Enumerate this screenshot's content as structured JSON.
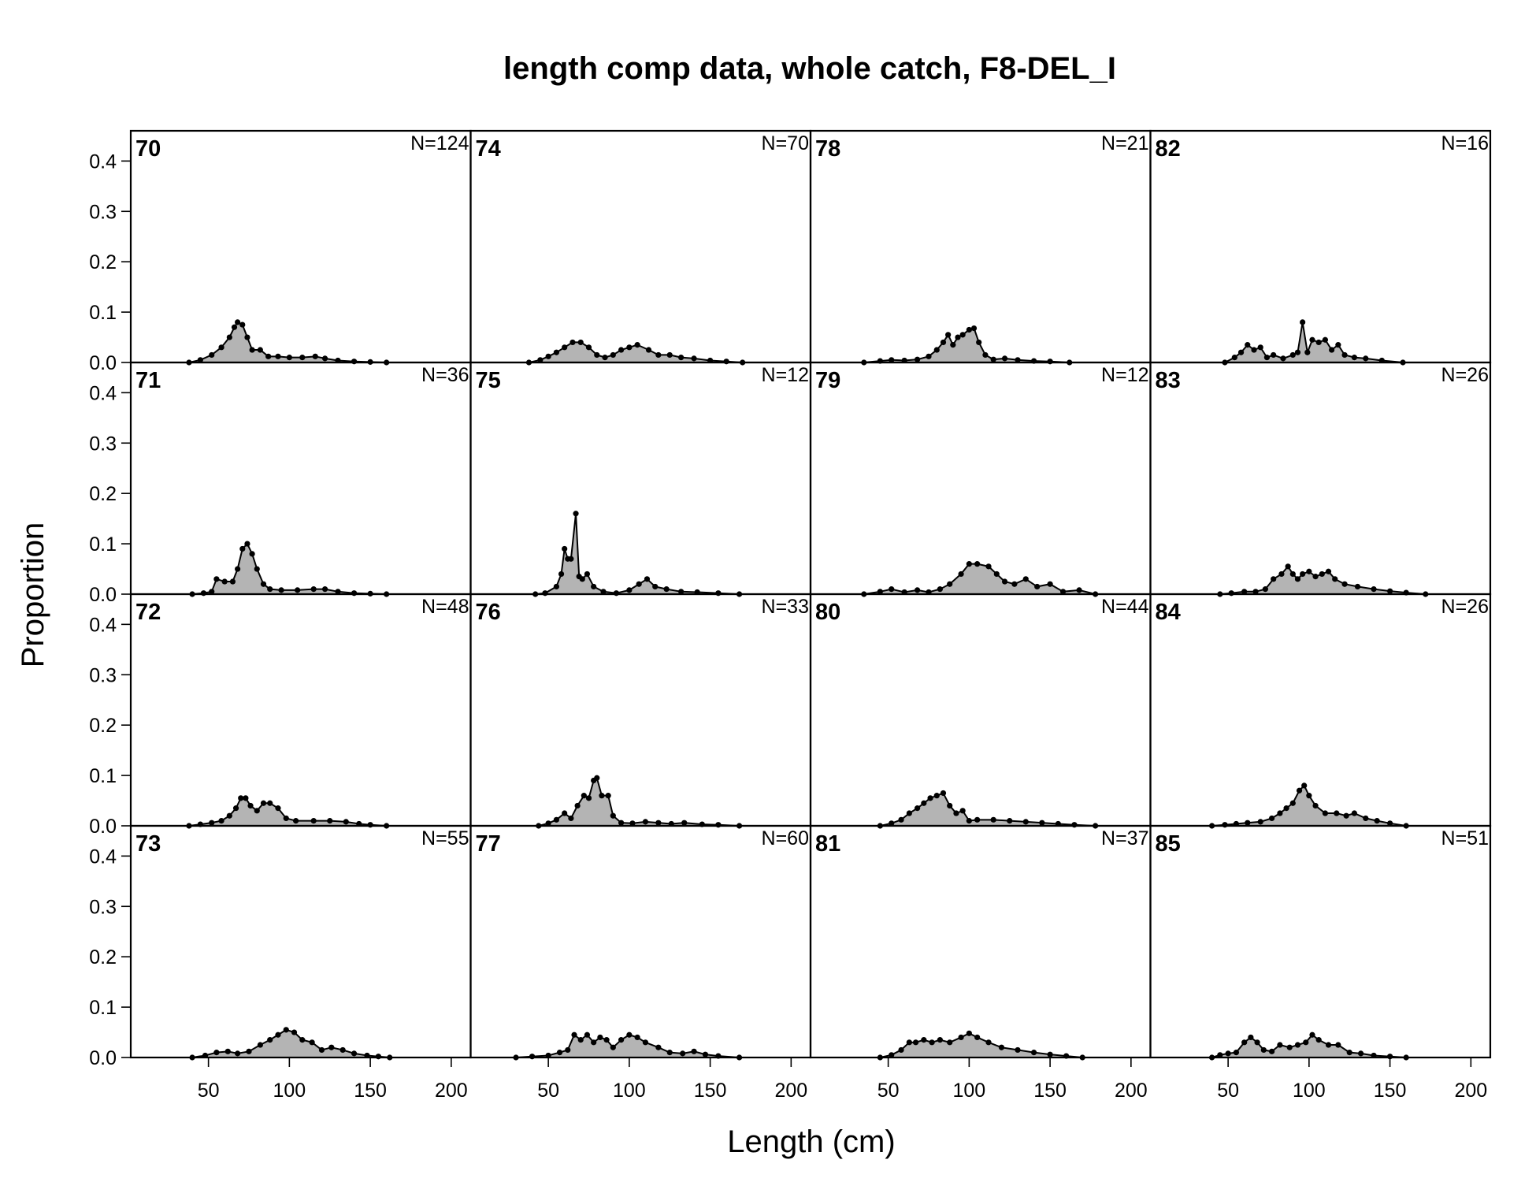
{
  "chart_data": {
    "type": "area",
    "title": "length comp data, whole catch, F8-DEL_I",
    "xlabel": "Length (cm)",
    "ylabel": "Proportion",
    "xlim": [
      2,
      212
    ],
    "ylim": [
      0,
      0.46
    ],
    "xticks": [
      50,
      100,
      150,
      200
    ],
    "yticks": [
      0.0,
      0.1,
      0.2,
      0.3,
      0.4
    ],
    "ytick_labels": [
      "0.0",
      "0.1",
      "0.2",
      "0.3",
      "0.4"
    ],
    "grid": false,
    "layout": "4 rows x 4 columns, years down columns",
    "panels": [
      {
        "year": "70",
        "n_label": "N=124",
        "x": [
          38,
          45,
          52,
          58,
          63,
          66,
          68,
          71,
          74,
          77,
          82,
          87,
          93,
          100,
          108,
          116,
          122,
          130,
          140,
          150,
          160
        ],
        "y": [
          0,
          0.005,
          0.015,
          0.03,
          0.05,
          0.07,
          0.08,
          0.075,
          0.05,
          0.025,
          0.025,
          0.012,
          0.012,
          0.01,
          0.01,
          0.012,
          0.008,
          0.004,
          0.002,
          0.001,
          0
        ]
      },
      {
        "year": "71",
        "n_label": "N=36",
        "x": [
          40,
          47,
          52,
          55,
          60,
          65,
          68,
          71,
          74,
          77,
          80,
          84,
          88,
          95,
          105,
          115,
          122,
          130,
          140,
          150,
          160
        ],
        "y": [
          0,
          0.002,
          0.005,
          0.03,
          0.025,
          0.025,
          0.05,
          0.09,
          0.1,
          0.08,
          0.05,
          0.02,
          0.01,
          0.008,
          0.008,
          0.01,
          0.01,
          0.005,
          0.002,
          0.001,
          0
        ]
      },
      {
        "year": "72",
        "n_label": "N=48",
        "x": [
          38,
          45,
          52,
          58,
          63,
          67,
          70,
          73,
          76,
          80,
          84,
          88,
          93,
          98,
          104,
          115,
          125,
          135,
          143,
          150,
          160
        ],
        "y": [
          0,
          0.003,
          0.006,
          0.01,
          0.02,
          0.035,
          0.055,
          0.055,
          0.04,
          0.03,
          0.045,
          0.045,
          0.035,
          0.015,
          0.01,
          0.01,
          0.01,
          0.008,
          0.004,
          0.002,
          0
        ]
      },
      {
        "year": "73",
        "n_label": "N=55",
        "x": [
          40,
          48,
          55,
          62,
          68,
          75,
          82,
          88,
          93,
          98,
          103,
          108,
          114,
          120,
          126,
          133,
          140,
          148,
          155,
          162
        ],
        "y": [
          0,
          0.004,
          0.01,
          0.012,
          0.008,
          0.012,
          0.025,
          0.035,
          0.045,
          0.055,
          0.05,
          0.035,
          0.03,
          0.015,
          0.02,
          0.015,
          0.008,
          0.004,
          0.002,
          0
        ]
      },
      {
        "year": "74",
        "n_label": "N=70",
        "x": [
          38,
          45,
          50,
          55,
          60,
          65,
          70,
          75,
          80,
          85,
          90,
          95,
          100,
          105,
          112,
          118,
          125,
          132,
          140,
          150,
          160,
          170
        ],
        "y": [
          0,
          0.005,
          0.012,
          0.02,
          0.03,
          0.04,
          0.04,
          0.03,
          0.015,
          0.01,
          0.015,
          0.025,
          0.03,
          0.035,
          0.025,
          0.015,
          0.015,
          0.01,
          0.008,
          0.004,
          0.002,
          0
        ]
      },
      {
        "year": "75",
        "n_label": "N=12",
        "x": [
          42,
          48,
          55,
          58,
          60,
          62,
          64,
          67,
          69,
          71,
          74,
          78,
          84,
          92,
          100,
          106,
          111,
          116,
          123,
          132,
          142,
          155,
          168
        ],
        "y": [
          0,
          0.002,
          0.015,
          0.04,
          0.09,
          0.07,
          0.07,
          0.16,
          0.035,
          0.03,
          0.04,
          0.015,
          0.005,
          0.002,
          0.008,
          0.02,
          0.03,
          0.015,
          0.01,
          0.005,
          0.004,
          0.002,
          0
        ]
      },
      {
        "year": "76",
        "n_label": "N=33",
        "x": [
          44,
          50,
          55,
          60,
          64,
          68,
          72,
          75,
          78,
          80,
          83,
          87,
          90,
          95,
          102,
          110,
          118,
          126,
          134,
          145,
          155,
          168
        ],
        "y": [
          0,
          0.005,
          0.012,
          0.025,
          0.015,
          0.04,
          0.06,
          0.055,
          0.09,
          0.095,
          0.06,
          0.06,
          0.02,
          0.006,
          0.005,
          0.008,
          0.006,
          0.004,
          0.006,
          0.003,
          0.002,
          0
        ]
      },
      {
        "year": "77",
        "n_label": "N=60",
        "x": [
          30,
          40,
          50,
          57,
          62,
          66,
          70,
          74,
          78,
          82,
          86,
          90,
          95,
          100,
          105,
          110,
          118,
          125,
          133,
          140,
          147,
          155,
          168
        ],
        "y": [
          0,
          0.002,
          0.004,
          0.01,
          0.015,
          0.045,
          0.035,
          0.045,
          0.03,
          0.04,
          0.035,
          0.02,
          0.035,
          0.045,
          0.04,
          0.03,
          0.02,
          0.01,
          0.008,
          0.012,
          0.006,
          0.003,
          0
        ]
      },
      {
        "year": "78",
        "n_label": "N=21",
        "x": [
          35,
          45,
          52,
          60,
          68,
          75,
          80,
          84,
          87,
          90,
          93,
          96,
          100,
          103,
          106,
          110,
          115,
          122,
          130,
          140,
          150,
          162
        ],
        "y": [
          0,
          0.003,
          0.005,
          0.004,
          0.006,
          0.012,
          0.025,
          0.04,
          0.055,
          0.035,
          0.05,
          0.055,
          0.065,
          0.068,
          0.04,
          0.015,
          0.006,
          0.008,
          0.005,
          0.003,
          0.002,
          0
        ]
      },
      {
        "year": "79",
        "n_label": "N=12",
        "x": [
          35,
          45,
          52,
          60,
          68,
          75,
          82,
          88,
          95,
          100,
          105,
          112,
          117,
          122,
          128,
          135,
          142,
          150,
          158,
          168,
          178
        ],
        "y": [
          0,
          0.005,
          0.01,
          0.004,
          0.008,
          0.004,
          0.01,
          0.02,
          0.04,
          0.06,
          0.06,
          0.055,
          0.04,
          0.025,
          0.02,
          0.03,
          0.015,
          0.02,
          0.005,
          0.008,
          0
        ]
      },
      {
        "year": "80",
        "n_label": "N=44",
        "x": [
          45,
          52,
          58,
          63,
          68,
          72,
          76,
          80,
          84,
          88,
          92,
          96,
          100,
          105,
          115,
          125,
          135,
          145,
          155,
          165,
          178
        ],
        "y": [
          0,
          0.005,
          0.012,
          0.025,
          0.035,
          0.045,
          0.055,
          0.06,
          0.065,
          0.04,
          0.025,
          0.03,
          0.01,
          0.012,
          0.012,
          0.01,
          0.008,
          0.006,
          0.004,
          0.002,
          0
        ]
      },
      {
        "year": "81",
        "n_label": "N=37",
        "x": [
          45,
          52,
          58,
          63,
          67,
          72,
          77,
          82,
          88,
          95,
          100,
          105,
          112,
          120,
          130,
          140,
          150,
          160,
          170
        ],
        "y": [
          0,
          0.005,
          0.015,
          0.03,
          0.03,
          0.035,
          0.03,
          0.035,
          0.03,
          0.04,
          0.048,
          0.04,
          0.03,
          0.02,
          0.015,
          0.01,
          0.006,
          0.003,
          0
        ]
      },
      {
        "year": "82",
        "n_label": "N=16",
        "x": [
          48,
          54,
          58,
          62,
          66,
          70,
          74,
          78,
          84,
          90,
          93,
          96,
          99,
          102,
          106,
          110,
          114,
          118,
          122,
          128,
          135,
          145,
          158
        ],
        "y": [
          0,
          0.01,
          0.02,
          0.035,
          0.025,
          0.03,
          0.01,
          0.015,
          0.008,
          0.015,
          0.02,
          0.08,
          0.02,
          0.045,
          0.04,
          0.045,
          0.025,
          0.035,
          0.015,
          0.01,
          0.008,
          0.004,
          0
        ]
      },
      {
        "year": "83",
        "n_label": "N=26",
        "x": [
          45,
          52,
          60,
          67,
          73,
          78,
          83,
          87,
          90,
          93,
          96,
          100,
          104,
          108,
          112,
          116,
          122,
          130,
          140,
          150,
          160,
          172
        ],
        "y": [
          0,
          0.002,
          0.005,
          0.005,
          0.01,
          0.03,
          0.04,
          0.055,
          0.04,
          0.03,
          0.04,
          0.045,
          0.035,
          0.04,
          0.045,
          0.03,
          0.02,
          0.015,
          0.01,
          0.006,
          0.003,
          0
        ]
      },
      {
        "year": "84",
        "n_label": "N=26",
        "x": [
          40,
          48,
          55,
          62,
          70,
          77,
          82,
          86,
          90,
          94,
          97,
          100,
          104,
          110,
          117,
          123,
          128,
          135,
          142,
          150,
          160
        ],
        "y": [
          0,
          0.002,
          0.004,
          0.006,
          0.008,
          0.015,
          0.025,
          0.035,
          0.045,
          0.07,
          0.08,
          0.06,
          0.04,
          0.025,
          0.025,
          0.02,
          0.025,
          0.015,
          0.01,
          0.005,
          0
        ]
      },
      {
        "year": "85",
        "n_label": "N=51",
        "x": [
          40,
          45,
          50,
          55,
          60,
          64,
          68,
          72,
          77,
          82,
          88,
          93,
          98,
          102,
          106,
          112,
          118,
          125,
          132,
          140,
          150,
          160
        ],
        "y": [
          0,
          0.005,
          0.008,
          0.01,
          0.03,
          0.04,
          0.03,
          0.015,
          0.012,
          0.025,
          0.02,
          0.025,
          0.03,
          0.045,
          0.035,
          0.025,
          0.025,
          0.01,
          0.008,
          0.004,
          0.002,
          0
        ]
      }
    ]
  }
}
